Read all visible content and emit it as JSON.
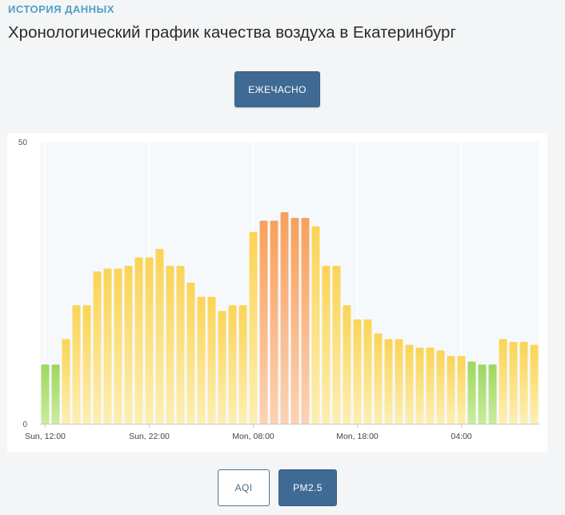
{
  "header": {
    "eyebrow": "ИСТОРИЯ ДАННЫХ",
    "title": "Хронологический график качества воздуха в Екатеринбург"
  },
  "controls": {
    "interval_label": "ЕЖЕЧАСНО",
    "metric_aqi_label": "AQI",
    "metric_pm25_label": "PM2.5",
    "active_metric": "PM2.5"
  },
  "colors": {
    "good_top": "#9fd660",
    "good_bottom": "#c9ec9c",
    "moderate_top": "#fbd456",
    "moderate_bottom": "#fcefb2",
    "sensitive_top": "#f8a05c",
    "sensitive_bottom": "#fcd2b4",
    "plot_bg": "#f6f9fb",
    "gridline": "#ffffff",
    "axis": "#c6c6c6"
  },
  "chart_data": {
    "type": "bar",
    "grid": true,
    "ylim": [
      0,
      50
    ],
    "y_ticks": [
      "0",
      "50"
    ],
    "x_ticks": [
      {
        "label": "Sun, 12:00",
        "index": 0
      },
      {
        "label": "Sun, 22:00",
        "index": 10
      },
      {
        "label": "Mon, 08:00",
        "index": 20
      },
      {
        "label": "Mon, 18:00",
        "index": 30
      },
      {
        "label": "04:00",
        "index": 40
      }
    ],
    "series": [
      {
        "values": [
          10.5,
          10.5,
          15,
          21,
          21,
          27,
          27.5,
          27.5,
          28,
          29.5,
          29.5,
          31,
          28,
          28,
          25,
          22.5,
          22.5,
          20,
          21,
          21,
          34,
          36,
          36,
          37.5,
          36.5,
          36.5,
          35,
          28,
          28,
          21,
          18.5,
          18.5,
          16,
          15,
          15,
          14,
          13.5,
          13.5,
          13,
          12,
          12,
          11,
          10.5,
          10.5,
          15,
          14.5,
          14.5,
          14
        ],
        "categories": [
          "good",
          "good",
          "moderate",
          "moderate",
          "moderate",
          "moderate",
          "moderate",
          "moderate",
          "moderate",
          "moderate",
          "moderate",
          "moderate",
          "moderate",
          "moderate",
          "moderate",
          "moderate",
          "moderate",
          "moderate",
          "moderate",
          "moderate",
          "moderate",
          "sensitive",
          "sensitive",
          "sensitive",
          "sensitive",
          "sensitive",
          "moderate",
          "moderate",
          "moderate",
          "moderate",
          "moderate",
          "moderate",
          "moderate",
          "moderate",
          "moderate",
          "moderate",
          "moderate",
          "moderate",
          "moderate",
          "moderate",
          "moderate",
          "good",
          "good",
          "good",
          "moderate",
          "moderate",
          "moderate",
          "moderate"
        ]
      }
    ]
  }
}
